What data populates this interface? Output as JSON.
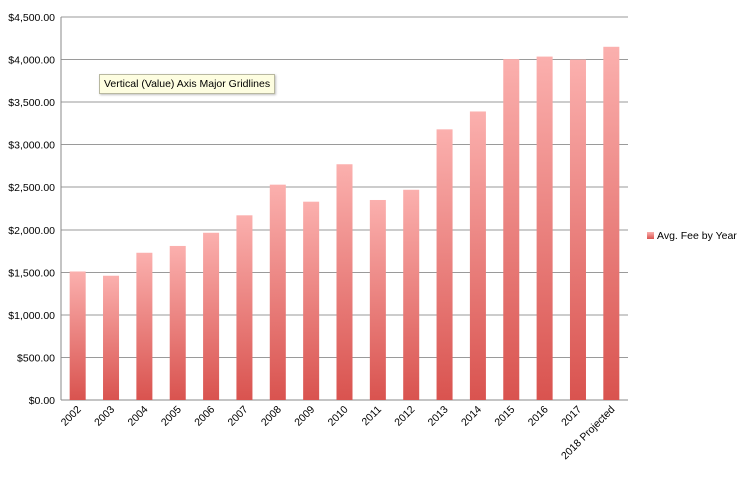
{
  "chart_data": {
    "type": "bar",
    "title": "",
    "xlabel": "",
    "ylabel": "",
    "ylim": [
      0,
      4500
    ],
    "yticks": [
      0,
      500,
      1000,
      1500,
      2000,
      2500,
      3000,
      3500,
      4000,
      4500
    ],
    "ytick_labels": [
      "$0.00",
      "$500.00",
      "$1,000.00",
      "$1,500.00",
      "$2,000.00",
      "$2,500.00",
      "$3,000.00",
      "$3,500.00",
      "$4,000.00",
      "$4,500.00"
    ],
    "grid": true,
    "legend_position": "right",
    "categories": [
      "2002",
      "2003",
      "2004",
      "2005",
      "2006",
      "2007",
      "2008",
      "2009",
      "2010",
      "2011",
      "2012",
      "2013",
      "2014",
      "2015",
      "2016",
      "2017",
      "2018 Projected"
    ],
    "series": [
      {
        "name": "Avg. Fee by Year",
        "color_top": "#fbb0ae",
        "color_bottom": "#d9534f",
        "values": [
          1510,
          1460,
          1730,
          1810,
          1965,
          2170,
          2530,
          2330,
          2770,
          2350,
          2470,
          3180,
          3390,
          4005,
          4035,
          4000,
          4150
        ]
      }
    ]
  },
  "tooltip": {
    "text": "Vertical (Value) Axis Major Gridlines"
  }
}
